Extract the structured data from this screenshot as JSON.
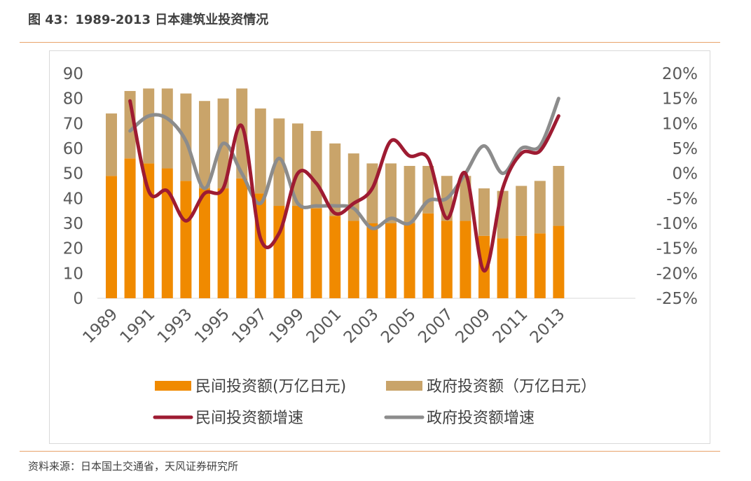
{
  "figure": {
    "title": "图 43：1989-2013 日本建筑业投资情况",
    "source": "资料来源：日本国土交通省，天风证券研究所"
  },
  "chart_data": {
    "type": "bar",
    "stacked": true,
    "x": [
      1989,
      1990,
      1991,
      1992,
      1993,
      1994,
      1995,
      1996,
      1997,
      1998,
      1999,
      2000,
      2001,
      2002,
      2003,
      2004,
      2005,
      2006,
      2007,
      2008,
      2009,
      2010,
      2011,
      2012,
      2013
    ],
    "x_tick_labels": [
      "1989",
      "1991",
      "1993",
      "1995",
      "1997",
      "1999",
      "2001",
      "2003",
      "2005",
      "2007",
      "2009",
      "2011",
      "2013"
    ],
    "y_left": {
      "ylim": [
        0,
        90
      ],
      "ticks": [
        "0",
        "10",
        "20",
        "30",
        "40",
        "50",
        "60",
        "70",
        "80",
        "90"
      ]
    },
    "y_right": {
      "ylim": [
        -25,
        20
      ],
      "unit": "%",
      "ticks": [
        "-25%",
        "-20%",
        "-15%",
        "-10%",
        "-5%",
        "0%",
        "5%",
        "10%",
        "15%",
        "20%"
      ]
    },
    "series": [
      {
        "name": "民间投资额(万亿日元)",
        "type": "bar",
        "axis": "left",
        "color": "#f08a00",
        "values": [
          49,
          56,
          54,
          52,
          47,
          44,
          44,
          48,
          42,
          37,
          37,
          36,
          33,
          31,
          30,
          30,
          30,
          34,
          31,
          31,
          25,
          24,
          25,
          26,
          29
        ]
      },
      {
        "name": "政府投资额（万亿日元）",
        "type": "bar",
        "axis": "left",
        "color": "#c9a46a",
        "values": [
          25,
          27,
          30,
          32,
          35,
          35,
          36,
          36,
          34,
          35,
          33,
          31,
          29,
          27,
          24,
          24,
          23,
          19,
          18,
          18,
          19,
          19,
          20,
          21,
          24
        ]
      },
      {
        "name": "民间投资额增速",
        "type": "line",
        "axis": "right",
        "color": "#9e1b32",
        "values": [
          null,
          14.5,
          -3.5,
          -3.5,
          -9.5,
          -4,
          -3,
          9.5,
          -13,
          -12,
          0,
          -2,
          -8,
          -6,
          -3,
          6.5,
          3.5,
          3,
          -9,
          0,
          -19.5,
          -3,
          4,
          4.5,
          11.5
        ]
      },
      {
        "name": "政府投资额增速",
        "type": "line",
        "axis": "right",
        "color": "#8c8c8c",
        "values": [
          null,
          8.5,
          11.5,
          11,
          6.5,
          -3,
          6,
          0,
          -6,
          3,
          -6,
          -6.5,
          -6.5,
          -7,
          -11,
          -9,
          -10,
          -5.5,
          -5,
          0,
          5.5,
          0,
          5,
          5.5,
          15
        ]
      }
    ],
    "legend_position": "bottom",
    "grid": false
  }
}
